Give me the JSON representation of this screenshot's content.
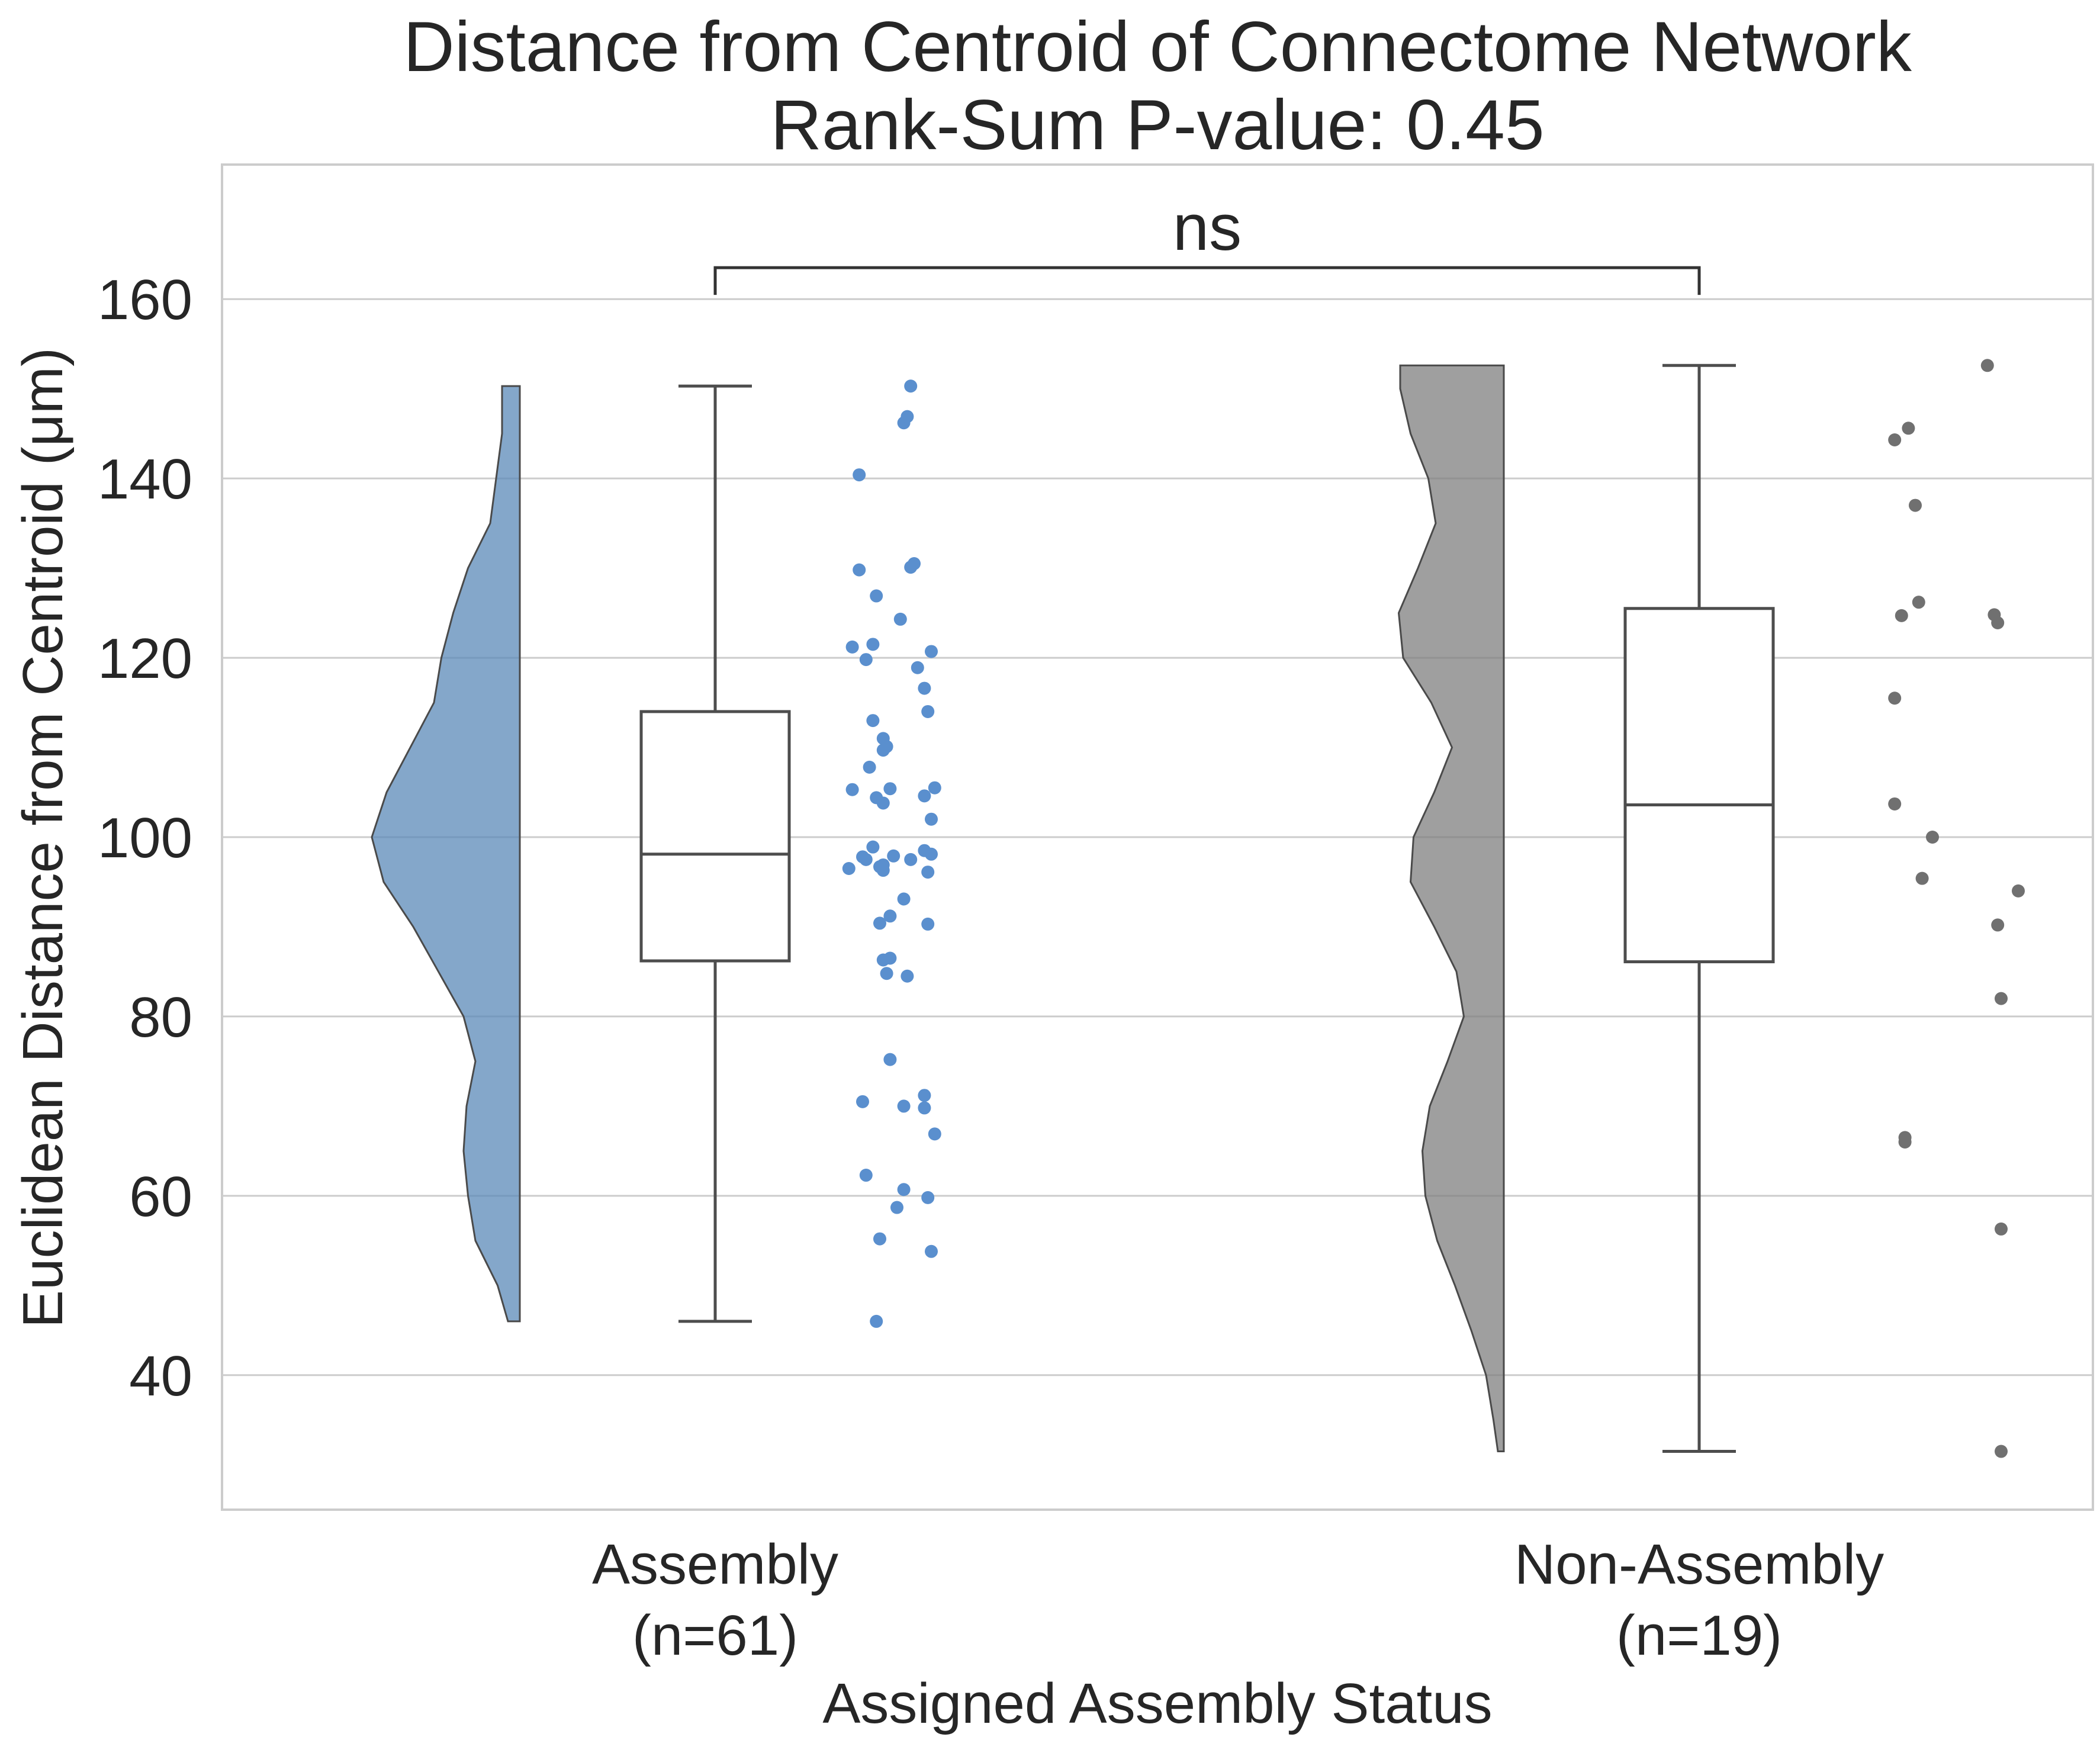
{
  "chart_data": {
    "type": "raincloud",
    "title": "Distance from Centroid of Connectome Network",
    "subtitle": "Rank-Sum P-value: 0.45",
    "xlabel": "Assigned Assembly Status",
    "ylabel": "Euclidean Distance from Centroid (μm)",
    "ylim": [
      25,
      175
    ],
    "yticks": [
      "40",
      "60",
      "80",
      "100",
      "120",
      "140",
      "160"
    ],
    "grid": "horizontal",
    "significance": {
      "label": "ns",
      "height": 163.5
    },
    "groups": [
      {
        "label_line1": "Assembly",
        "label_line2": "(n=61)",
        "color": "#5b89b8",
        "point_color": "#5a8fce",
        "box": {
          "whisker_low": 46,
          "q1": 86.2,
          "median": 98.1,
          "q3": 114,
          "whisker_high": 150.3
        },
        "density": [
          [
            46,
            0.08
          ],
          [
            50,
            0.15
          ],
          [
            55,
            0.3
          ],
          [
            60,
            0.35
          ],
          [
            65,
            0.38
          ],
          [
            70,
            0.36
          ],
          [
            75,
            0.3
          ],
          [
            80,
            0.38
          ],
          [
            85,
            0.55
          ],
          [
            90,
            0.72
          ],
          [
            95,
            0.92
          ],
          [
            100,
            1.0
          ],
          [
            105,
            0.9
          ],
          [
            110,
            0.74
          ],
          [
            115,
            0.58
          ],
          [
            120,
            0.53
          ],
          [
            125,
            0.45
          ],
          [
            130,
            0.35
          ],
          [
            135,
            0.2
          ],
          [
            140,
            0.16
          ],
          [
            145,
            0.12
          ],
          [
            150.3,
            0.12
          ]
        ],
        "points": [
          [
            0.19,
            150.3
          ],
          [
            0.04,
            140.4
          ],
          [
            0.17,
            146.2
          ],
          [
            0.18,
            146.9
          ],
          [
            0.04,
            129.8
          ],
          [
            0.19,
            130.1
          ],
          [
            0.2,
            130.5
          ],
          [
            0.09,
            126.9
          ],
          [
            0.16,
            124.3
          ],
          [
            0.02,
            121.2
          ],
          [
            0.08,
            121.5
          ],
          [
            0.25,
            120.7
          ],
          [
            0.06,
            119.8
          ],
          [
            0.21,
            118.9
          ],
          [
            0.23,
            116.6
          ],
          [
            0.24,
            114.0
          ],
          [
            0.08,
            113.0
          ],
          [
            0.11,
            111.0
          ],
          [
            0.12,
            110.1
          ],
          [
            0.11,
            109.7
          ],
          [
            0.07,
            107.8
          ],
          [
            0.02,
            105.3
          ],
          [
            0.13,
            105.4
          ],
          [
            0.26,
            105.5
          ],
          [
            0.23,
            104.6
          ],
          [
            0.09,
            104.4
          ],
          [
            0.11,
            103.8
          ],
          [
            0.25,
            102.0
          ],
          [
            0.01,
            96.5
          ],
          [
            0.05,
            97.8
          ],
          [
            0.06,
            97.5
          ],
          [
            0.08,
            98.9
          ],
          [
            0.1,
            96.7
          ],
          [
            0.11,
            96.9
          ],
          [
            0.11,
            96.3
          ],
          [
            0.14,
            97.9
          ],
          [
            0.17,
            93.1
          ],
          [
            0.19,
            97.5
          ],
          [
            0.23,
            98.5
          ],
          [
            0.25,
            98.1
          ],
          [
            0.24,
            96.1
          ],
          [
            0.1,
            90.4
          ],
          [
            0.13,
            91.2
          ],
          [
            0.24,
            90.3
          ],
          [
            0.11,
            86.3
          ],
          [
            0.13,
            86.5
          ],
          [
            0.12,
            84.8
          ],
          [
            0.18,
            84.5
          ],
          [
            0.13,
            75.2
          ],
          [
            0.05,
            70.5
          ],
          [
            0.17,
            70.0
          ],
          [
            0.23,
            71.2
          ],
          [
            0.23,
            69.8
          ],
          [
            0.26,
            66.9
          ],
          [
            0.06,
            62.3
          ],
          [
            0.17,
            60.7
          ],
          [
            0.15,
            58.7
          ],
          [
            0.24,
            59.8
          ],
          [
            0.1,
            55.2
          ],
          [
            0.25,
            53.8
          ],
          [
            0.09,
            46.0
          ]
        ]
      },
      {
        "label_line1": "Non-Assembly",
        "label_line2": "(n=19)",
        "color": "#7f7f7f",
        "point_color": "#707070",
        "box": {
          "whisker_low": 31.5,
          "q1": 86.1,
          "median": 103.6,
          "q3": 125.5,
          "whisker_high": 152.6
        },
        "density": [
          [
            31.5,
            0.04
          ],
          [
            35,
            0.07
          ],
          [
            40,
            0.12
          ],
          [
            45,
            0.22
          ],
          [
            50,
            0.33
          ],
          [
            55,
            0.45
          ],
          [
            60,
            0.53
          ],
          [
            65,
            0.55
          ],
          [
            70,
            0.5
          ],
          [
            75,
            0.38
          ],
          [
            80,
            0.27
          ],
          [
            85,
            0.32
          ],
          [
            90,
            0.47
          ],
          [
            95,
            0.63
          ],
          [
            100,
            0.61
          ],
          [
            105,
            0.47
          ],
          [
            110,
            0.35
          ],
          [
            115,
            0.49
          ],
          [
            120,
            0.68
          ],
          [
            125,
            0.71
          ],
          [
            130,
            0.58
          ],
          [
            135,
            0.46
          ],
          [
            140,
            0.51
          ],
          [
            145,
            0.63
          ],
          [
            150,
            0.7
          ],
          [
            152.6,
            0.7
          ]
        ],
        "points": [
          [
            0.46,
            152.6
          ],
          [
            0.23,
            145.6
          ],
          [
            0.19,
            144.3
          ],
          [
            0.25,
            137.0
          ],
          [
            0.26,
            126.2
          ],
          [
            0.21,
            124.7
          ],
          [
            0.48,
            124.8
          ],
          [
            0.49,
            123.9
          ],
          [
            0.19,
            115.5
          ],
          [
            0.19,
            103.7
          ],
          [
            0.3,
            100.0
          ],
          [
            0.27,
            95.4
          ],
          [
            0.55,
            94.0
          ],
          [
            0.49,
            90.2
          ],
          [
            0.5,
            82.0
          ],
          [
            0.22,
            66.5
          ],
          [
            0.22,
            66.0
          ],
          [
            0.5,
            56.3
          ],
          [
            0.5,
            31.5
          ]
        ]
      }
    ]
  }
}
